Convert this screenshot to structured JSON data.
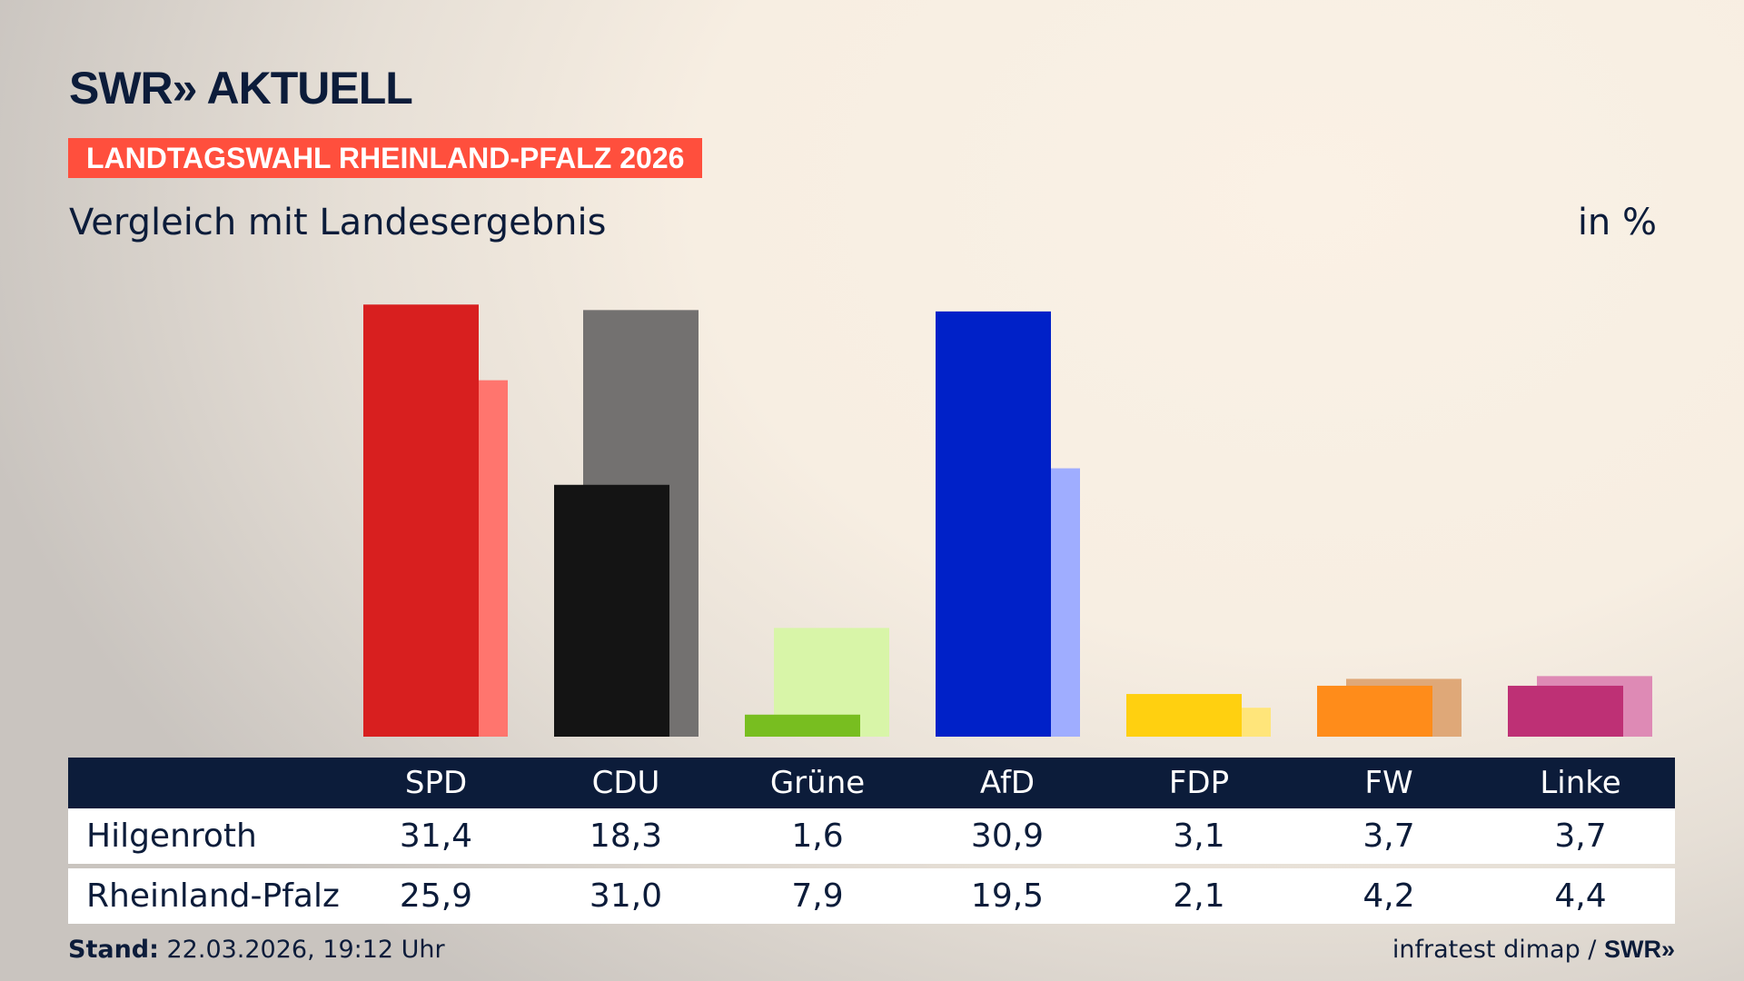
{
  "header": {
    "logo": "SWR» AKTUELL",
    "banner": "LANDTAGSWAHL RHEINLAND-PFALZ 2026",
    "subtitle": "Vergleich mit Landesergebnis",
    "unit": "in %"
  },
  "chart_data": {
    "type": "bar",
    "title": "Vergleich mit Landesergebnis",
    "ylabel": "in %",
    "categories": [
      "SPD",
      "CDU",
      "Grüne",
      "AfD",
      "FDP",
      "FW",
      "Linke"
    ],
    "series": [
      {
        "name": "Hilgenroth",
        "values": [
          31.4,
          18.3,
          1.6,
          30.9,
          3.1,
          3.7,
          3.7
        ],
        "display": [
          "31,4",
          "18,3",
          "1,6",
          "30,9",
          "3,1",
          "3,7",
          "3,7"
        ]
      },
      {
        "name": "Rheinland-Pfalz",
        "values": [
          25.9,
          31.0,
          7.9,
          19.5,
          2.1,
          4.2,
          4.4
        ],
        "display": [
          "25,9",
          "31,0",
          "7,9",
          "19,5",
          "2,1",
          "4,2",
          "4,4"
        ]
      }
    ],
    "colors": {
      "primary": [
        "#d81f1f",
        "#141414",
        "#78be20",
        "#0021c8",
        "#ffd010",
        "#ff8c1a",
        "#be3075"
      ],
      "secondary": [
        "#ff756e",
        "#737170",
        "#d8f5a8",
        "#9fadff",
        "#ffe57a",
        "#dfa878",
        "#de8ab5"
      ]
    },
    "grid": false
  },
  "footer": {
    "stand_label": "Stand:",
    "stand_value": " 22.03.2026, 19:12 Uhr",
    "source": "infratest dimap / ",
    "source_logo": "SWR»"
  }
}
